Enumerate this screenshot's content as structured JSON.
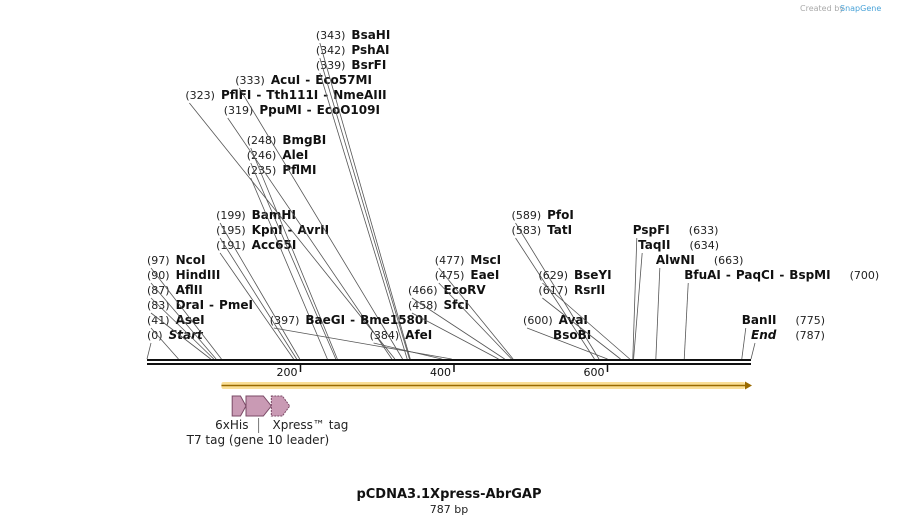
{
  "brand": {
    "prefix": "Created by",
    "name": "SnapGene"
  },
  "map": {
    "title": "pCDNA3.1Xpress-AbrGAP",
    "length_label": "787 bp",
    "length_bp": 787,
    "ruler_ticks": [
      {
        "bp": 200,
        "label": "200"
      },
      {
        "bp": 400,
        "label": "400"
      },
      {
        "bp": 600,
        "label": "600"
      }
    ]
  },
  "sites": [
    {
      "pos_label": "(0)",
      "bp": 0,
      "row": 0,
      "label_bp": 0,
      "names": [
        "Start"
      ],
      "italic": true
    },
    {
      "pos_label": "(41)",
      "bp": 41,
      "row": 1,
      "label_bp": 0,
      "names": [
        "AseI"
      ]
    },
    {
      "pos_label": "(83)",
      "bp": 83,
      "row": 2,
      "label_bp": 0,
      "names": [
        "DraI",
        "PmeI"
      ]
    },
    {
      "pos_label": "(87)",
      "bp": 87,
      "row": 3,
      "label_bp": 0,
      "names": [
        "AflII"
      ]
    },
    {
      "pos_label": "(90)",
      "bp": 90,
      "row": 4,
      "label_bp": 0,
      "names": [
        "HindIII"
      ]
    },
    {
      "pos_label": "(97)",
      "bp": 97,
      "row": 5,
      "label_bp": 0,
      "names": [
        "NcoI"
      ]
    },
    {
      "pos_label": "(191)",
      "bp": 191,
      "row": 6,
      "label_bp": 90,
      "names": [
        "Acc65I"
      ]
    },
    {
      "pos_label": "(195)",
      "bp": 195,
      "row": 7,
      "label_bp": 90,
      "names": [
        "KpnI",
        "AvrII"
      ]
    },
    {
      "pos_label": "(199)",
      "bp": 199,
      "row": 8,
      "label_bp": 90,
      "names": [
        "BamHI"
      ]
    },
    {
      "pos_label": "(235)",
      "bp": 235,
      "row": 11,
      "label_bp": 130,
      "names": [
        "PflMI"
      ]
    },
    {
      "pos_label": "(246)",
      "bp": 246,
      "row": 12,
      "label_bp": 130,
      "names": [
        "AleI"
      ]
    },
    {
      "pos_label": "(248)",
      "bp": 248,
      "row": 13,
      "label_bp": 130,
      "names": [
        "BmgBI"
      ]
    },
    {
      "pos_label": "(319)",
      "bp": 319,
      "row": 15,
      "label_bp": 100,
      "names": [
        "PpuMI",
        "EcoO109I"
      ]
    },
    {
      "pos_label": "(323)",
      "bp": 323,
      "row": 16,
      "label_bp": 50,
      "names": [
        "PflFI",
        "Tth111I",
        "NmeAIII"
      ]
    },
    {
      "pos_label": "(333)",
      "bp": 333,
      "row": 17,
      "label_bp": 115,
      "names": [
        "AcuI",
        "Eco57MI"
      ]
    },
    {
      "pos_label": "(339)",
      "bp": 339,
      "row": 18,
      "label_bp": 220,
      "names": [
        "BsrFI"
      ]
    },
    {
      "pos_label": "(342)",
      "bp": 342,
      "row": 19,
      "label_bp": 220,
      "names": [
        "PshAI"
      ]
    },
    {
      "pos_label": "(343)",
      "bp": 343,
      "row": 20,
      "label_bp": 220,
      "names": [
        "BsaHI"
      ]
    },
    {
      "pos_label": "(384)",
      "bp": 384,
      "row": 0,
      "label_bp": 290,
      "names": [
        "AfeI"
      ]
    },
    {
      "pos_label": "(397)",
      "bp": 397,
      "row": 1,
      "label_bp": 160,
      "names": [
        "BaeGI",
        "Bme1580I"
      ]
    },
    {
      "pos_label": "(458)",
      "bp": 458,
      "row": 2,
      "label_bp": 340,
      "names": [
        "SfcI"
      ]
    },
    {
      "pos_label": "(466)",
      "bp": 466,
      "row": 3,
      "label_bp": 340,
      "names": [
        "EcoRV"
      ]
    },
    {
      "pos_label": "(475)",
      "bp": 475,
      "row": 4,
      "label_bp": 375,
      "names": [
        "EaeI"
      ]
    },
    {
      "pos_label": "(477)",
      "bp": 477,
      "row": 5,
      "label_bp": 375,
      "names": [
        "MscI"
      ]
    },
    {
      "pos_label": "(583)",
      "bp": 583,
      "row": 7,
      "label_bp": 475,
      "names": [
        "TatI"
      ]
    },
    {
      "pos_label": "(589)",
      "bp": 589,
      "row": 8,
      "label_bp": 475,
      "names": [
        "PfoI"
      ]
    },
    {
      "pos_label": "(600)",
      "bp": 600,
      "row": 1,
      "label_bp": 490,
      "names": [
        "AvaI"
      ],
      "second": "BsoBI"
    },
    {
      "pos_label": "(617)",
      "bp": 617,
      "row": 3,
      "label_bp": 510,
      "names": [
        "RsrII"
      ]
    },
    {
      "pos_label": "(629)",
      "bp": 629,
      "row": 4,
      "label_bp": 510,
      "names": [
        "BseYI"
      ]
    },
    {
      "pos_label": "(633)",
      "bp": 633,
      "row": 7,
      "label_bp": 633,
      "names": [
        "PspFI"
      ],
      "pos_after": true
    },
    {
      "pos_label": "(634)",
      "bp": 634,
      "row": 6,
      "label_bp": 640,
      "names": [
        "TaqII"
      ],
      "pos_after": true
    },
    {
      "pos_label": "(663)",
      "bp": 663,
      "row": 5,
      "label_bp": 663,
      "names": [
        "AlwNI"
      ],
      "pos_after": true
    },
    {
      "pos_label": "(700)",
      "bp": 700,
      "row": 4,
      "label_bp": 700,
      "names": [
        "BfuAI",
        "PaqCI",
        "BspMI"
      ],
      "pos_after": true
    },
    {
      "pos_label": "(775)",
      "bp": 775,
      "row": 1,
      "label_bp": 775,
      "names": [
        "BanII"
      ],
      "pos_after": true
    },
    {
      "pos_label": "(787)",
      "bp": 787,
      "row": 0,
      "label_bp": 787,
      "names": [
        "End"
      ],
      "pos_after": true,
      "italic": true
    }
  ],
  "features": {
    "orf": {
      "start_bp": 97,
      "end_bp": 787,
      "color": "#f5c542",
      "arrow_color": "#9a6a00"
    },
    "tags": [
      {
        "label": "6xHis",
        "start_bp": 111,
        "end_bp": 129
      },
      {
        "label": "T7 tag (gene 10 leader)",
        "start_bp": 129,
        "end_bp": 162
      },
      {
        "label": "Xpress™ tag",
        "start_bp": 162,
        "end_bp": 186
      }
    ],
    "tag_color": "#c99ab4",
    "tag_stroke": "#7a4a66"
  }
}
